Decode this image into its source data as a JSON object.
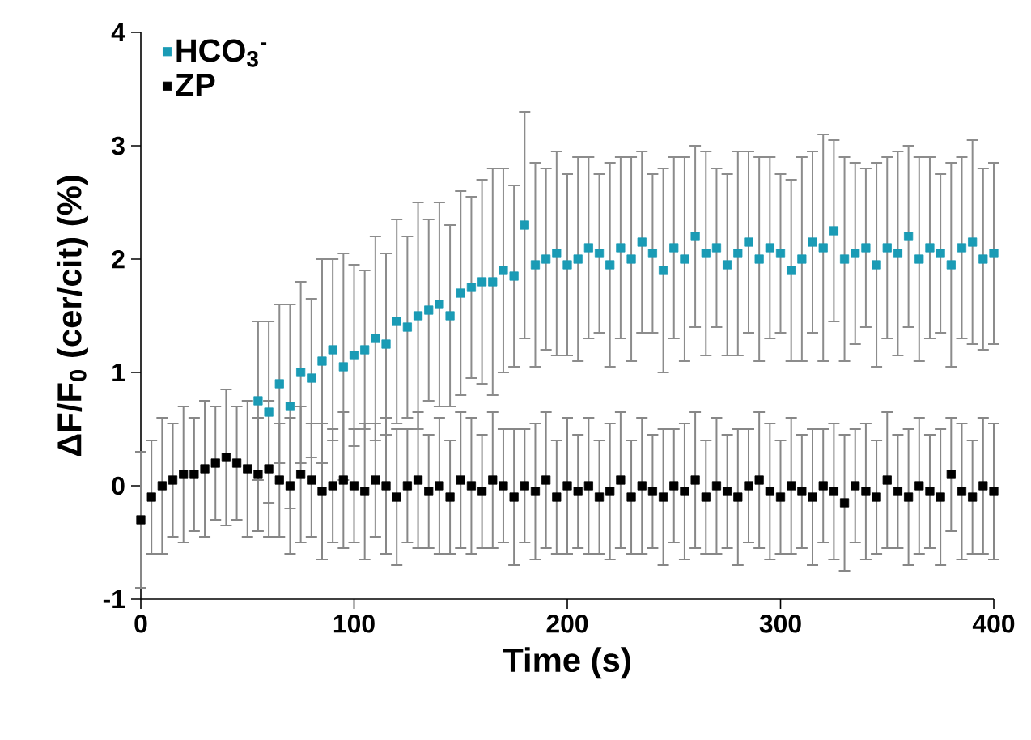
{
  "chart_data": {
    "type": "scatter",
    "xlabel": "Time (s)",
    "ylabel": "ΔF/F$_{0}$ (cer/cit) (%)",
    "x": [
      0,
      5,
      10,
      15,
      20,
      25,
      30,
      35,
      40,
      45,
      50,
      55,
      60,
      65,
      70,
      75,
      80,
      85,
      90,
      95,
      100,
      105,
      110,
      115,
      120,
      125,
      130,
      135,
      140,
      145,
      150,
      155,
      160,
      165,
      170,
      175,
      180,
      185,
      190,
      195,
      200,
      205,
      210,
      215,
      220,
      225,
      230,
      235,
      240,
      245,
      250,
      255,
      260,
      265,
      270,
      275,
      280,
      285,
      290,
      295,
      300,
      305,
      310,
      315,
      320,
      325,
      330,
      335,
      340,
      345,
      350,
      355,
      360,
      365,
      370,
      375,
      380,
      385,
      390,
      395,
      400
    ],
    "series": [
      {
        "name": "HCO$_{3}$$^{-}$",
        "color": "#1a9bb5",
        "values": [
          null,
          null,
          null,
          null,
          null,
          null,
          null,
          null,
          null,
          null,
          null,
          0.75,
          0.65,
          0.9,
          0.7,
          1.0,
          0.95,
          1.1,
          1.2,
          1.05,
          1.15,
          1.2,
          1.3,
          1.25,
          1.45,
          1.4,
          1.5,
          1.55,
          1.6,
          1.5,
          1.7,
          1.75,
          1.8,
          1.8,
          1.9,
          1.85,
          2.3,
          1.95,
          2.0,
          2.05,
          1.95,
          2.0,
          2.1,
          2.05,
          1.95,
          2.1,
          2.0,
          2.15,
          2.05,
          1.9,
          2.1,
          2.0,
          2.2,
          2.05,
          2.1,
          1.95,
          2.05,
          2.15,
          2.0,
          2.1,
          2.05,
          1.9,
          2.0,
          2.15,
          2.1,
          2.25,
          2.0,
          2.05,
          2.1,
          1.95,
          2.1,
          2.05,
          2.2,
          2.0,
          2.1,
          2.05,
          1.95,
          2.1,
          2.15,
          2.0,
          2.05
        ],
        "errors": [
          null,
          null,
          null,
          null,
          null,
          null,
          null,
          null,
          null,
          null,
          null,
          0.7,
          0.8,
          0.7,
          0.9,
          0.8,
          0.7,
          0.9,
          0.8,
          1.0,
          0.8,
          0.7,
          0.9,
          0.8,
          0.9,
          0.8,
          1.0,
          0.8,
          0.9,
          0.8,
          0.9,
          0.8,
          0.9,
          1.0,
          0.9,
          0.8,
          1.0,
          0.9,
          0.8,
          0.9,
          0.8,
          0.9,
          0.8,
          0.7,
          0.9,
          0.8,
          0.9,
          0.8,
          0.7,
          0.9,
          0.8,
          0.9,
          0.8,
          0.9,
          0.7,
          0.8,
          0.9,
          0.8,
          0.9,
          0.8,
          0.7,
          0.8,
          0.9,
          0.8,
          1.0,
          0.8,
          0.9,
          0.8,
          0.7,
          0.9,
          0.8,
          0.9,
          0.8,
          0.9,
          0.8,
          0.7,
          0.9,
          0.8,
          0.9,
          0.8,
          0.8
        ]
      },
      {
        "name": "ZP",
        "color": "#000000",
        "values": [
          -0.3,
          -0.1,
          0.0,
          0.05,
          0.1,
          0.1,
          0.15,
          0.2,
          0.25,
          0.2,
          0.15,
          0.1,
          0.15,
          0.05,
          0.0,
          0.1,
          0.05,
          -0.05,
          0.0,
          0.05,
          0.0,
          -0.05,
          0.05,
          0.0,
          -0.1,
          0.0,
          0.05,
          -0.05,
          0.0,
          -0.1,
          0.05,
          0.0,
          -0.05,
          0.05,
          0.0,
          -0.1,
          0.0,
          -0.05,
          0.05,
          -0.1,
          0.0,
          -0.05,
          0.0,
          -0.1,
          -0.05,
          0.05,
          -0.1,
          0.0,
          -0.05,
          -0.1,
          0.0,
          -0.05,
          0.05,
          -0.1,
          0.0,
          -0.05,
          -0.1,
          0.0,
          0.05,
          -0.05,
          -0.1,
          0.0,
          -0.05,
          -0.1,
          0.0,
          -0.05,
          -0.15,
          0.0,
          -0.05,
          -0.1,
          0.05,
          -0.05,
          -0.1,
          0.0,
          -0.05,
          -0.1,
          0.1,
          -0.05,
          -0.1,
          0.0,
          -0.05
        ],
        "errors": [
          0.6,
          0.5,
          0.6,
          0.5,
          0.6,
          0.5,
          0.6,
          0.5,
          0.6,
          0.5,
          0.6,
          0.5,
          0.6,
          0.5,
          0.6,
          0.6,
          0.5,
          0.6,
          0.5,
          0.6,
          0.5,
          0.6,
          0.5,
          0.6,
          0.6,
          0.5,
          0.6,
          0.5,
          0.6,
          0.5,
          0.6,
          0.6,
          0.5,
          0.6,
          0.5,
          0.6,
          0.5,
          0.6,
          0.6,
          0.5,
          0.6,
          0.5,
          0.6,
          0.5,
          0.6,
          0.6,
          0.5,
          0.6,
          0.5,
          0.6,
          0.5,
          0.6,
          0.6,
          0.5,
          0.6,
          0.5,
          0.6,
          0.5,
          0.6,
          0.6,
          0.5,
          0.6,
          0.5,
          0.6,
          0.5,
          0.6,
          0.6,
          0.5,
          0.6,
          0.5,
          0.6,
          0.5,
          0.6,
          0.6,
          0.5,
          0.6,
          0.5,
          0.6,
          0.5,
          0.6,
          0.6
        ]
      }
    ],
    "xlim": [
      0,
      400
    ],
    "ylim": [
      -1,
      4
    ],
    "xticks": [
      0,
      100,
      200,
      300,
      400
    ],
    "yticks": [
      -1,
      0,
      1,
      2,
      3,
      4
    ],
    "marker": "square",
    "grid": false,
    "legend": "top left"
  }
}
